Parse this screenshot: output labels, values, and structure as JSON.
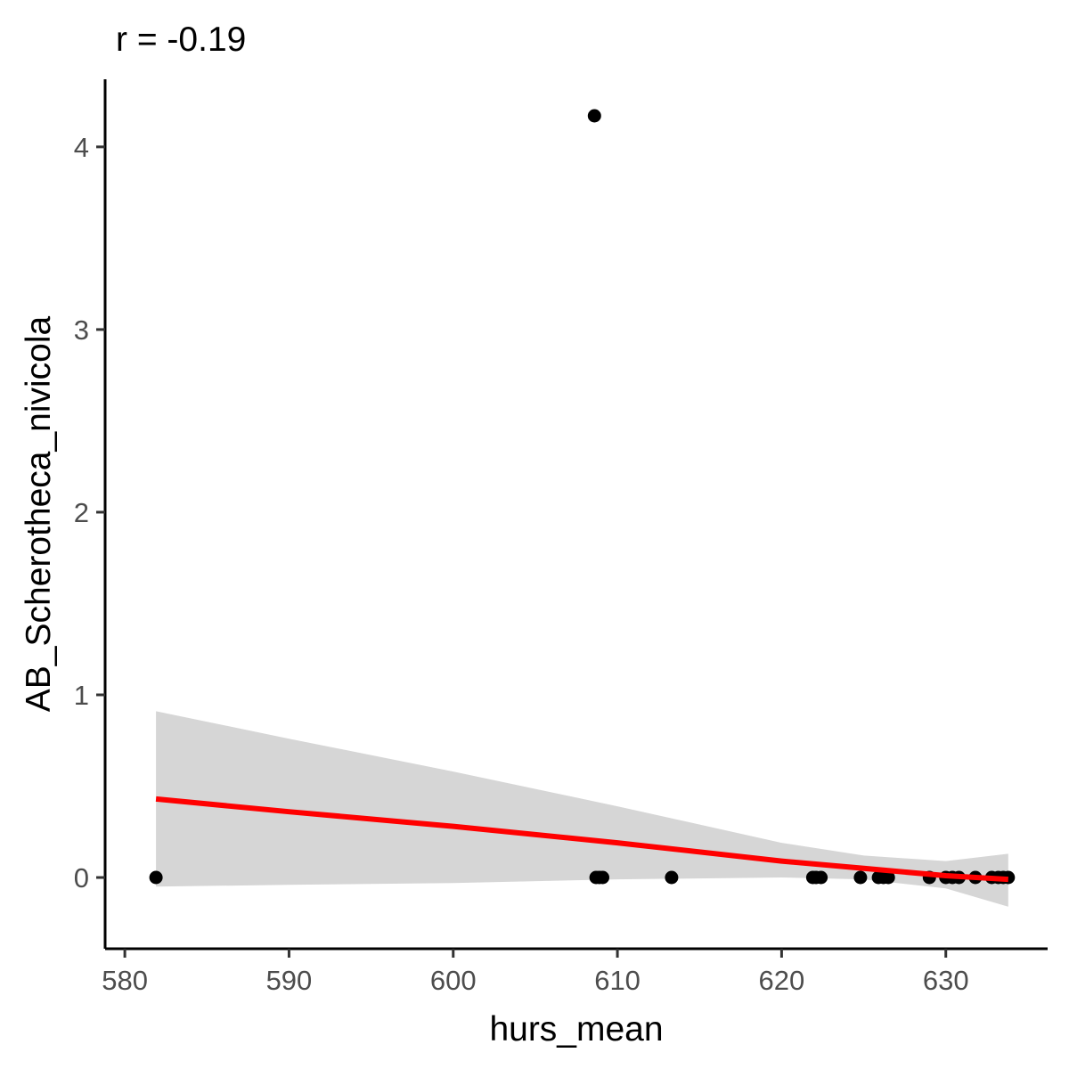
{
  "chart_data": {
    "type": "scatter",
    "title": "r = -0.19",
    "xlabel": "hurs_mean",
    "ylabel": "AB_Scherotheca_nivicola",
    "xlim": [
      578.8,
      636.2
    ],
    "ylim": [
      -0.39,
      4.37
    ],
    "x_ticks": [
      580,
      590,
      600,
      610,
      620,
      630
    ],
    "y_ticks": [
      0,
      1,
      2,
      3,
      4
    ],
    "grid": false,
    "colors": {
      "points": "#000000",
      "fit_line": "#ff0000",
      "ribbon": "#d6d6d6",
      "axis": "#000000"
    },
    "points": [
      {
        "x": 581.9,
        "y": 0
      },
      {
        "x": 608.6,
        "y": 4.17
      },
      {
        "x": 608.7,
        "y": 0
      },
      {
        "x": 608.9,
        "y": 0
      },
      {
        "x": 609.1,
        "y": 0
      },
      {
        "x": 613.3,
        "y": 0
      },
      {
        "x": 621.9,
        "y": 0
      },
      {
        "x": 622.1,
        "y": 0
      },
      {
        "x": 622.4,
        "y": 0
      },
      {
        "x": 624.8,
        "y": 0
      },
      {
        "x": 625.9,
        "y": 0
      },
      {
        "x": 626.2,
        "y": 0
      },
      {
        "x": 626.5,
        "y": 0
      },
      {
        "x": 629.0,
        "y": 0
      },
      {
        "x": 630.0,
        "y": 0
      },
      {
        "x": 630.4,
        "y": 0
      },
      {
        "x": 630.8,
        "y": 0
      },
      {
        "x": 631.8,
        "y": 0
      },
      {
        "x": 632.8,
        "y": 0
      },
      {
        "x": 633.2,
        "y": 0
      },
      {
        "x": 633.5,
        "y": 0
      },
      {
        "x": 633.8,
        "y": 0
      }
    ],
    "fit": {
      "x": [
        581.9,
        590,
        600,
        610,
        620,
        625,
        630,
        633.8
      ],
      "y": [
        0.43,
        0.36,
        0.28,
        0.19,
        0.09,
        0.05,
        0.01,
        -0.01
      ],
      "ci_lower": [
        -0.05,
        -0.04,
        -0.03,
        -0.01,
        0.0,
        -0.01,
        -0.06,
        -0.16
      ],
      "ci_upper": [
        0.91,
        0.76,
        0.58,
        0.39,
        0.19,
        0.12,
        0.09,
        0.13
      ]
    }
  }
}
